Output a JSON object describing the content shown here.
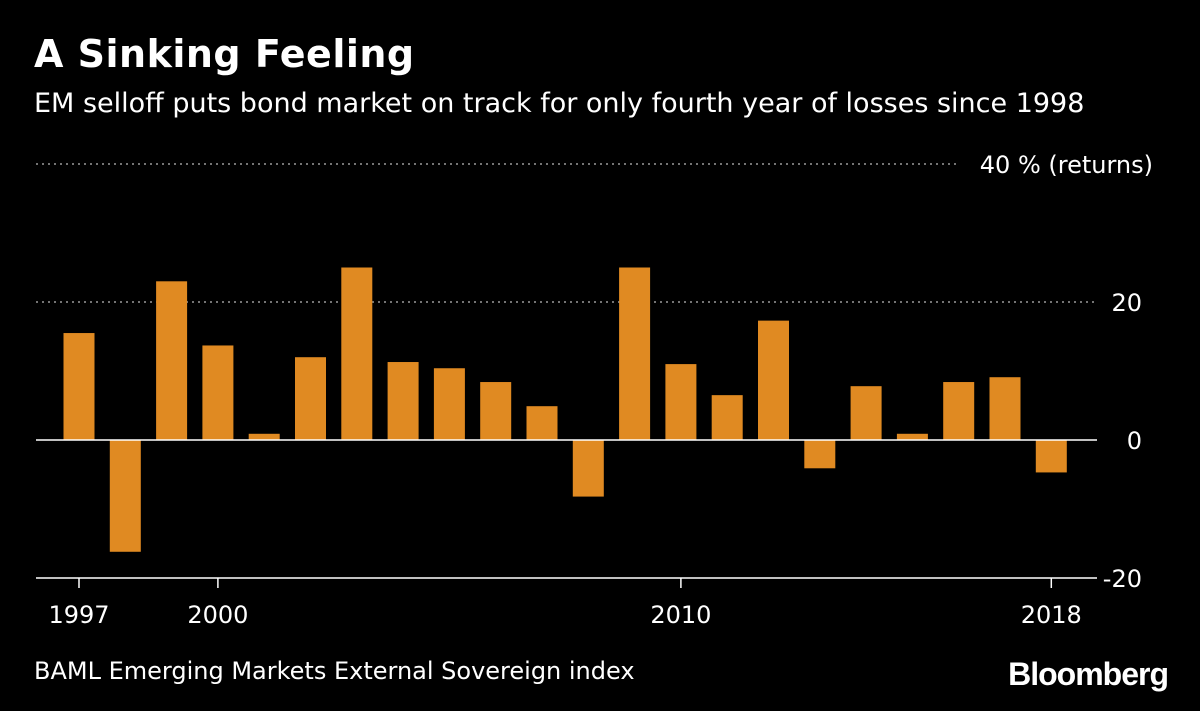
{
  "header": {
    "title": "A Sinking Feeling",
    "subtitle": "EM selloff puts bond market on track for only fourth year of losses since 1998"
  },
  "footer": {
    "source": "BAML Emerging Markets External Sovereign index",
    "brand": "Bloomberg"
  },
  "chart_data": {
    "type": "bar",
    "title": "A Sinking Feeling",
    "subtitle": "EM selloff puts bond market on track for only fourth year of losses since 1998",
    "ylabel": "40 % (returns)",
    "ylim": [
      -20,
      40
    ],
    "y_ticks": [
      -20,
      0,
      20,
      40
    ],
    "y_tick_labels": [
      "-20",
      "0",
      "20",
      "40 % (returns)"
    ],
    "x_tick_years": [
      1997,
      2000,
      2010,
      2018
    ],
    "x_tick_labels": [
      "1997",
      "2000",
      "2010",
      "2018"
    ],
    "grid": "horizontal dotted",
    "bar_color": "#E08A22",
    "categories": [
      "1997",
      "1998",
      "1999",
      "2000",
      "2001",
      "2002",
      "2003",
      "2004",
      "2005",
      "2006",
      "2007",
      "2008",
      "2009",
      "2010",
      "2011",
      "2012",
      "2013",
      "2014",
      "2015",
      "2016",
      "2017",
      "2018"
    ],
    "values": [
      15.5,
      -16.2,
      23.0,
      13.7,
      0.9,
      12.0,
      25.0,
      11.3,
      10.4,
      8.4,
      4.9,
      -8.2,
      25.0,
      11.0,
      6.5,
      17.3,
      -4.1,
      7.8,
      0.9,
      8.4,
      9.1,
      -4.7
    ]
  }
}
